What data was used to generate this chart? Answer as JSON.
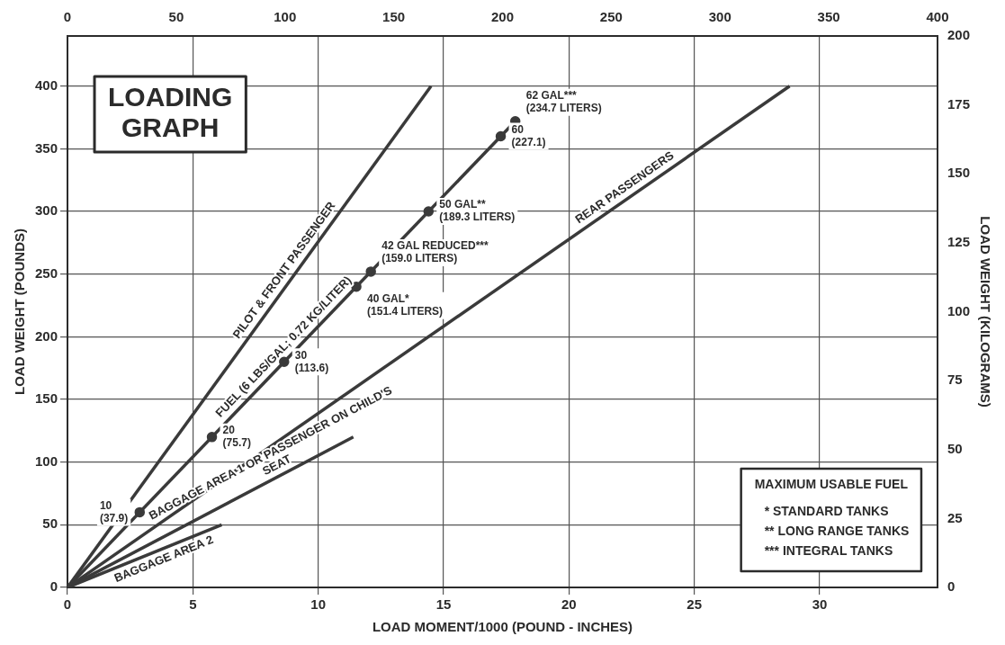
{
  "chart_data": {
    "type": "line",
    "title": "LOADING GRAPH",
    "xlabel": "LOAD MOMENT/1000 (POUND - INCHES)",
    "ylabel": "LOAD WEIGHT (POUNDS)",
    "y2label": "LOAD WEIGHT (KILOGRAMS)",
    "xlim": [
      0,
      34.7
    ],
    "xticks": [
      0,
      5,
      10,
      15,
      20,
      25,
      30
    ],
    "ylim": [
      0,
      440
    ],
    "yticks": [
      0,
      50,
      100,
      150,
      200,
      250,
      300,
      350,
      400
    ],
    "y2lim": [
      0,
      200
    ],
    "y2ticks": [
      0,
      25,
      50,
      75,
      100,
      125,
      150,
      175,
      200
    ],
    "x2lim": [
      0,
      400
    ],
    "x2ticks": [
      0,
      50,
      100,
      150,
      200,
      250,
      300,
      350,
      400
    ],
    "grid": true,
    "legend": false,
    "line_style": "solid",
    "series": [
      {
        "name": "PILOT & FRONT PASSENGER",
        "color": "#3a3a3a",
        "marker": "none",
        "x": [
          0,
          14.5
        ],
        "values": [
          0,
          400
        ]
      },
      {
        "name": "FUEL (6 LBS/GAL; 0.72 KG/LITER)",
        "color": "#3a3a3a",
        "marker": "none",
        "x": [
          0,
          17.86
        ],
        "values": [
          0,
          372
        ]
      },
      {
        "type": "scatter",
        "color": "#3a3a3a",
        "marker": "circle",
        "x": [
          2.88,
          5.76,
          8.64,
          11.52,
          12.1,
          14.4,
          17.28,
          17.86
        ],
        "values": [
          60,
          120,
          180,
          240,
          252,
          300,
          360,
          372
        ]
      },
      {
        "name": "REAR PASSENGERS",
        "color": "#3a3a3a",
        "marker": "none",
        "x": [
          0,
          28.8
        ],
        "values": [
          0,
          400
        ]
      },
      {
        "name": "BAGGAGE AREA 1 OR PASSENGER ON CHILD'S SEAT",
        "color": "#3a3a3a",
        "marker": "none",
        "x": [
          0,
          11.4
        ],
        "values": [
          0,
          120
        ]
      },
      {
        "name": "BAGGAGE AREA 2",
        "color": "#3a3a3a",
        "marker": "none",
        "x": [
          0,
          6.15
        ],
        "values": [
          0,
          50
        ]
      }
    ],
    "annotations": [
      {
        "text": "10 (37.9)",
        "x": 2.88,
        "y": 60
      },
      {
        "text": "20 (75.7)",
        "x": 5.76,
        "y": 120
      },
      {
        "text": "30 (113.6)",
        "x": 8.64,
        "y": 180
      },
      {
        "text": "40 GAL* (151.4 LITERS)",
        "x": 11.52,
        "y": 240
      },
      {
        "text": "42 GAL REDUCED*** (159.0 LITERS)",
        "x": 12.1,
        "y": 252
      },
      {
        "text": "50 GAL** (189.3 LITERS)",
        "x": 14.4,
        "y": 300
      },
      {
        "text": "60 (227.1)",
        "x": 17.28,
        "y": 360
      },
      {
        "text": "62 GAL*** (234.7 LITERS)",
        "x": 17.86,
        "y": 372
      },
      "MAXIMUM USABLE FUEL",
      "* STANDARD TANKS",
      "** LONG RANGE TANKS",
      "*** INTEGRAL TANKS"
    ]
  }
}
